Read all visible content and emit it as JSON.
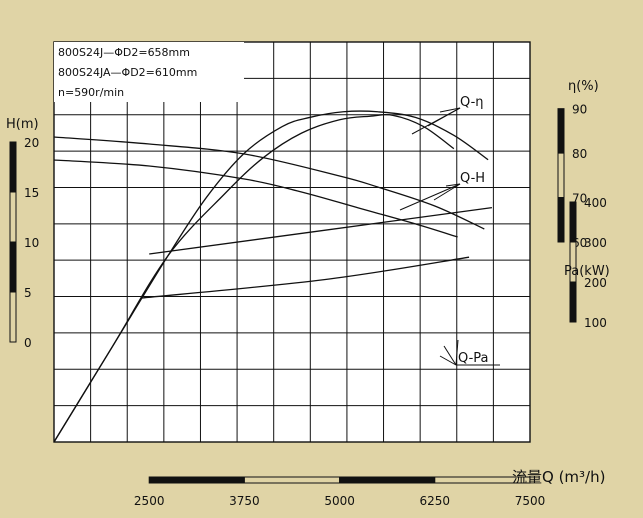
{
  "chart_data": {
    "type": "line",
    "title_lines": [
      "800S24J—ΦD2=658mm",
      "800S24JA—ΦD2=610mm",
      "n=590r/min"
    ],
    "xlabel": "流量Q (m³/h)",
    "x_ticks": [
      2500,
      3750,
      5000,
      6250,
      7500
    ],
    "xlim": [
      1250,
      7500
    ],
    "grid": true,
    "head_axis": {
      "label": "H(m)",
      "ticks": [
        0,
        5,
        10,
        15,
        20
      ],
      "range": [
        -10,
        30
      ]
    },
    "eff_axis": {
      "label": "η(%)",
      "ticks": [
        60,
        70,
        80,
        90
      ],
      "range": [
        15,
        105
      ]
    },
    "power_axis": {
      "label": "Pa(kW)",
      "ticks": [
        100,
        200,
        300,
        400
      ],
      "range": [
        -200,
        800
      ]
    },
    "curve_labels": {
      "eff": "Q-η",
      "head": "Q-H",
      "power": "Q-Pa"
    },
    "series": [
      {
        "axis": "head",
        "values": [
          [
            1250,
            20.5
          ],
          [
            2500,
            19.8
          ],
          [
            3750,
            18.8
          ],
          [
            5000,
            16.6
          ],
          [
            5500,
            15.5
          ],
          [
            6250,
            13.6
          ],
          [
            6900,
            11.3
          ]
        ]
      },
      {
        "axis": "head",
        "values": [
          [
            1250,
            18.2
          ],
          [
            2500,
            17.6
          ],
          [
            3750,
            16.3
          ],
          [
            4500,
            15.0
          ],
          [
            5250,
            13.4
          ],
          [
            6000,
            11.8
          ],
          [
            6550,
            10.5
          ]
        ]
      },
      {
        "axis": "eff",
        "values": [
          [
            1250,
            15
          ],
          [
            2000,
            36
          ],
          [
            2750,
            57
          ],
          [
            3250,
            70
          ],
          [
            3750,
            80
          ],
          [
            4250,
            86
          ],
          [
            4600,
            88
          ],
          [
            5050,
            89.3
          ],
          [
            5500,
            89.3
          ],
          [
            6000,
            88
          ],
          [
            6500,
            84
          ],
          [
            6950,
            78.5
          ]
        ]
      },
      {
        "axis": "eff",
        "values": [
          [
            1250,
            15
          ],
          [
            2000,
            36
          ],
          [
            2750,
            57
          ],
          [
            3500,
            71
          ],
          [
            4000,
            79
          ],
          [
            4500,
            84.5
          ],
          [
            5000,
            87.5
          ],
          [
            5400,
            88.3
          ],
          [
            5700,
            88.5
          ],
          [
            6100,
            86
          ],
          [
            6500,
            81
          ]
        ]
      },
      {
        "axis": "power",
        "values": [
          [
            2500,
            270
          ],
          [
            7000,
            386
          ]
        ]
      },
      {
        "axis": "power",
        "values": [
          [
            2400,
            160
          ],
          [
            4800,
            206
          ],
          [
            6700,
            262
          ]
        ]
      }
    ]
  }
}
